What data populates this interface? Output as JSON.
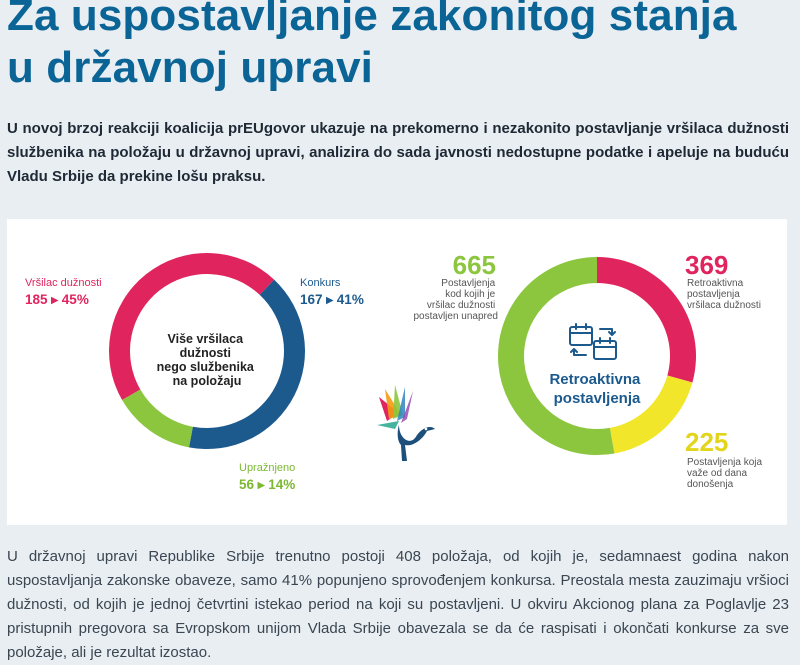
{
  "article": {
    "title_line1": "Za uspostavljanje zakonitog stanja",
    "title_line2": "u državnoj upravi",
    "lead": "U novoj brzoj reakciji koalicija prEUgovor ukazuje na prekomerno i nezakonito postavljanje vršilaca dužnosti službenika na položaju u državnoj upravi, analizira do sada javnosti nedostupne podatke i apeluje na buduću Vladu Srbije da prekine lošu praksu.",
    "body": "U državnoj upravi Republike Srbije trenutno postoji 408 položaja, od kojih je, sedamnaest godina nakon uspostavljanja zakonske obaveze, samo 41% popunjeno sprovođenjem konkursa. Preostala mesta zauzimaju vršioci dužnosti, od kojih je jednoj četvrtini istekao period na koji su postavljeni. U okviru Akcionog plana za Poglavlje 23 pristupnih pregovora sa Evropskom unijom Vlada Srbije obavezala se da će raspisati i okončati konkurse za sve položaje, ali je rezultat izostao."
  },
  "colors": {
    "title": "#0b6496",
    "pink": "#e0245e",
    "blue": "#1c5a8e",
    "green": "#8cc63f",
    "yellow": "#f2e62a"
  },
  "chart_data": [
    {
      "type": "pie",
      "title": "",
      "center_label": [
        "Više vršilaca",
        "dužnosti",
        "nego službenika",
        "na položaju"
      ],
      "slices": [
        {
          "name": "Vršilac dužnosti",
          "value": 185,
          "pct": 45,
          "value_label": "185 ▸ 45%",
          "color": "#e0245e"
        },
        {
          "name": "Konkurs",
          "value": 167,
          "pct": 41,
          "value_label": "167 ▸ 41%",
          "color": "#1c5a8e"
        },
        {
          "name": "Upražnjeno",
          "value": 56,
          "pct": 14,
          "value_label": "56 ▸ 14%",
          "color": "#8cc63f"
        }
      ]
    },
    {
      "type": "pie",
      "title": "",
      "center_label": [
        "Retroaktivna",
        "postavljenja"
      ],
      "slices": [
        {
          "name": "Postavljenja kod kojih je vršilac dužnosti postavljen unapred",
          "value": 665,
          "value_label": "665",
          "desc_lines": [
            "Postavljenja",
            "kod kojih je",
            "vršilac dužnosti",
            "postavljen unapred"
          ],
          "color": "#8cc63f"
        },
        {
          "name": "Retroaktivna postavljenja vršilaca dužnosti",
          "value": 369,
          "value_label": "369",
          "desc_lines": [
            "Retroaktivna",
            "postavljenja",
            "vršilaca dužnosti"
          ],
          "color": "#e0245e"
        },
        {
          "name": "Postavljenja koja važe od dana donošenja",
          "value": 225,
          "value_label": "225",
          "desc_lines": [
            "Postavljenja koja",
            "važe od dana",
            "donošenja"
          ],
          "color": "#f2e62a"
        }
      ]
    }
  ]
}
